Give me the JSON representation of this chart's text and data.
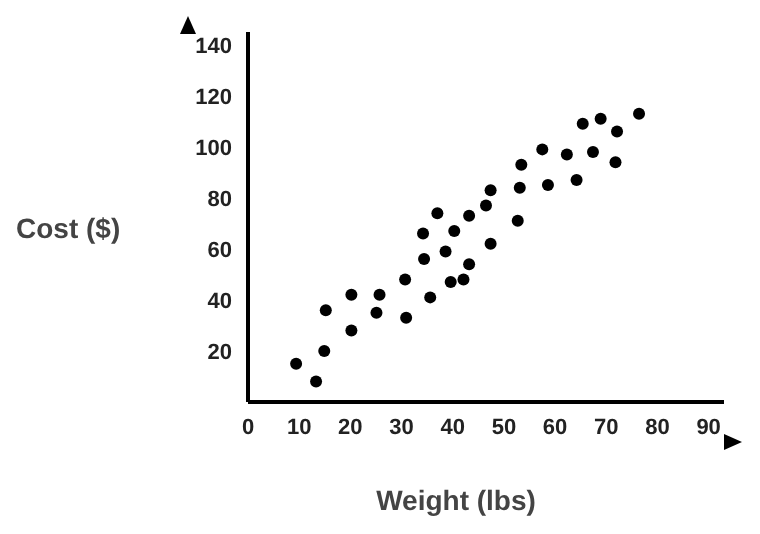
{
  "chart_data": {
    "type": "scatter",
    "xlabel": "Weight (lbs)",
    "ylabel": "Cost ($)",
    "x": [
      9.4,
      13.3,
      15.2,
      14.9,
      20.2,
      20.2,
      25.1,
      25.7,
      30.7,
      30.9,
      34.2,
      34.4,
      37,
      35.6,
      38.6,
      40.3,
      39.6,
      42.1,
      43.2,
      43.2,
      46.5,
      47.4,
      47.4,
      52.7,
      53.1,
      53.4,
      57.5,
      58.6,
      62.3,
      64.2,
      65.4,
      67.4,
      68.9,
      71.8,
      72.1,
      76.4
    ],
    "values": [
      15,
      8,
      36,
      20,
      42,
      28,
      35,
      42,
      48,
      33,
      66,
      56,
      74,
      41,
      59,
      67,
      47,
      48,
      73,
      54,
      77,
      83,
      62,
      71,
      84,
      93,
      99,
      85,
      97,
      87,
      109,
      98,
      111,
      94,
      106,
      113
    ],
    "color": "#000000",
    "marker": "circle",
    "grid": false,
    "xlim": [
      0,
      93
    ],
    "xticks": [
      0,
      10,
      20,
      30,
      40,
      50,
      60,
      70,
      80,
      90
    ],
    "ylim": [
      0,
      145
    ],
    "yticks": [
      20,
      40,
      60,
      80,
      100,
      120,
      140
    ]
  }
}
